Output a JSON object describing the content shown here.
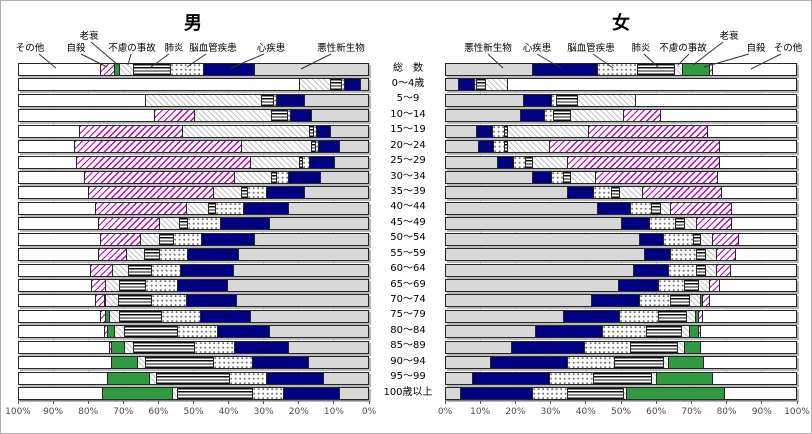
{
  "titles": {
    "male": "男",
    "female": "女"
  },
  "causes": [
    {
      "id": "cancer",
      "label": "悪性新生物",
      "swatch": "light-gray-solid"
    },
    {
      "id": "heart",
      "label": "心疾患",
      "swatch": "navy-solid"
    },
    {
      "id": "stroke",
      "label": "脳血管疾患",
      "swatch": "gray-dots"
    },
    {
      "id": "pneumonia",
      "label": "肺炎",
      "swatch": "black-horizontal-stripes"
    },
    {
      "id": "accident",
      "label": "不慮の事故",
      "swatch": "light-gray-diagonal-hatch"
    },
    {
      "id": "senility",
      "label": "老衰",
      "swatch": "green-solid"
    },
    {
      "id": "suicide",
      "label": "自殺",
      "swatch": "magenta-diagonal-hatch"
    },
    {
      "id": "other",
      "label": "その他",
      "swatch": "white"
    }
  ],
  "colors": {
    "heart": "#000082",
    "senility": "#2e9b3e",
    "suicide_hatch": "#bf00bf",
    "cancer": "#d8d8d8",
    "accident_hatch": "#c4c4c4",
    "grid": "#d9d9d9"
  },
  "axis": {
    "male_ticks": [
      "100%",
      "90%",
      "80%",
      "70%",
      "60%",
      "50%",
      "40%",
      "30%",
      "20%",
      "10%",
      "0%"
    ],
    "female_ticks": [
      "0%",
      "10%",
      "20%",
      "30%",
      "40%",
      "50%",
      "60%",
      "70%",
      "80%",
      "90%",
      "100%"
    ]
  },
  "chart_data": [
    {
      "type": "bar",
      "title": "男",
      "orientation": "horizontal-stacked-100pct",
      "bar_direction": "right-to-left",
      "x_range": [
        0,
        100
      ],
      "x_tick_labels": [
        "100%",
        "90%",
        "80%",
        "70%",
        "60%",
        "50%",
        "40%",
        "30%",
        "20%",
        "10%",
        "0%"
      ],
      "categories": [
        "総　数",
        "0〜4歳",
        "5〜9",
        "10〜14",
        "15〜19",
        "20〜24",
        "25〜29",
        "30〜34",
        "35〜39",
        "40〜44",
        "45〜49",
        "50〜54",
        "55〜59",
        "60〜64",
        "65〜69",
        "70〜74",
        "75〜79",
        "80〜84",
        "85〜89",
        "90〜94",
        "95〜99",
        "100歳以上"
      ],
      "series": [
        {
          "name": "悪性新生物",
          "values": [
            32.5,
            2,
            18,
            16,
            10.5,
            8,
            9.5,
            13.5,
            18,
            22.5,
            28,
            32.5,
            37,
            38.5,
            40,
            37.5,
            33.5,
            28,
            22.5,
            17,
            12.5,
            8
          ]
        },
        {
          "name": "心疾患",
          "values": [
            14.5,
            4.5,
            8,
            6,
            4,
            6,
            7,
            9,
            11,
            13,
            14,
            15,
            14.5,
            15,
            14.5,
            14.5,
            14.5,
            15,
            15.5,
            16,
            16.5,
            16
          ]
        },
        {
          "name": "脳血管疾患",
          "values": [
            9.5,
            1,
            1,
            1,
            1,
            1,
            2,
            3.5,
            5.5,
            8,
            9.5,
            8,
            8,
            8.5,
            9,
            10,
            11,
            11.5,
            11.5,
            11,
            10.5,
            9
          ]
        },
        {
          "name": "肺炎",
          "values": [
            10.5,
            3,
            3.5,
            4.5,
            1,
            1,
            1,
            1.5,
            1.5,
            2,
            2.5,
            4,
            4.5,
            6.5,
            7.5,
            9.5,
            12,
            15,
            17.5,
            19.5,
            21,
            21.5
          ]
        },
        {
          "name": "不慮の事故",
          "values": [
            4,
            9,
            33,
            22,
            36.5,
            20,
            14,
            10.5,
            8,
            6.5,
            5.5,
            5.5,
            5,
            4.5,
            4,
            3.5,
            3,
            3,
            2.5,
            2.5,
            2,
            1.5
          ]
        },
        {
          "name": "老衰",
          "values": [
            1.5,
            0,
            0,
            0,
            0,
            0,
            0,
            0,
            0,
            0,
            0,
            0,
            0,
            0,
            0,
            0.5,
            1,
            2,
            4,
            7.5,
            12,
            20
          ]
        },
        {
          "name": "自殺",
          "values": [
            4,
            0,
            0,
            11.5,
            29.5,
            48,
            50,
            43,
            36,
            26,
            17.5,
            11.5,
            8,
            6.5,
            4,
            2.5,
            1.5,
            1,
            0.5,
            0,
            0,
            0
          ]
        },
        {
          "name": "その他",
          "values": [
            23.5,
            80.5,
            36.5,
            39,
            17.5,
            16,
            16.5,
            19,
            20,
            22,
            23,
            23.5,
            23,
            20.5,
            21,
            22,
            23.5,
            24.5,
            26,
            26.5,
            25.5,
            24
          ]
        }
      ]
    },
    {
      "type": "bar",
      "title": "女",
      "orientation": "horizontal-stacked-100pct",
      "bar_direction": "left-to-right",
      "x_range": [
        0,
        100
      ],
      "x_tick_labels": [
        "0%",
        "10%",
        "20%",
        "30%",
        "40%",
        "50%",
        "60%",
        "70%",
        "80%",
        "90%",
        "100%"
      ],
      "categories": [
        "総　数",
        "0〜4歳",
        "5〜9",
        "10〜14",
        "15〜19",
        "20〜24",
        "25〜29",
        "30〜34",
        "35〜39",
        "40〜44",
        "45〜49",
        "50〜54",
        "55〜59",
        "60〜64",
        "65〜69",
        "70〜74",
        "75〜79",
        "80〜84",
        "85〜89",
        "90〜94",
        "95〜99",
        "100歳以上"
      ],
      "series": [
        {
          "name": "悪性新生物",
          "values": [
            24.5,
            3.5,
            22,
            21,
            8.5,
            9,
            14.5,
            24.5,
            34.5,
            43,
            50,
            55,
            56.5,
            53.5,
            49,
            41.5,
            33.5,
            25.5,
            18.5,
            12.5,
            7.5,
            4
          ]
        },
        {
          "name": "心疾患",
          "values": [
            18.5,
            4.5,
            8,
            7,
            4.5,
            4.5,
            4.5,
            5.5,
            7.5,
            9.5,
            8,
            7,
            7.5,
            10,
            11.5,
            13.5,
            16,
            19,
            21,
            22,
            22,
            20.5
          ]
        },
        {
          "name": "脳血管疾患",
          "values": [
            11.5,
            0.5,
            1.5,
            2.5,
            3.5,
            3,
            3.5,
            3.5,
            5,
            6,
            7.5,
            8.5,
            7.5,
            8,
            7.5,
            9,
            11,
            12.5,
            13,
            13.5,
            12.5,
            10
          ]
        },
        {
          "name": "肺炎",
          "values": [
            10.5,
            2.5,
            6,
            5,
            1,
            1,
            2,
            2,
            2.5,
            2.5,
            2.5,
            2,
            2.5,
            2.5,
            4,
            5.5,
            8,
            10,
            13.5,
            14,
            16.5,
            16
          ]
        },
        {
          "name": "不慮の事故",
          "values": [
            2.5,
            6.5,
            16.5,
            15,
            23,
            12,
            10,
            7,
            6.5,
            3,
            3.5,
            3.5,
            3,
            3,
            3,
            3,
            2.5,
            2.5,
            2,
            1.5,
            1.5,
            1
          ]
        },
        {
          "name": "老衰",
          "values": [
            7.5,
            0,
            0,
            0,
            0,
            0,
            0,
            0,
            0,
            0,
            0,
            0,
            0,
            0,
            0,
            0.5,
            1,
            2.5,
            4.5,
            10,
            16,
            28
          ]
        },
        {
          "name": "自殺",
          "values": [
            1,
            0,
            0,
            10.5,
            34,
            48.5,
            43.5,
            35,
            22.5,
            17.5,
            10,
            7.5,
            5.5,
            4,
            3,
            2,
            1,
            0.5,
            0,
            0,
            0,
            0
          ]
        },
        {
          "name": "その他",
          "values": [
            24,
            82.5,
            46,
            39,
            25.5,
            22,
            22,
            22.5,
            21.5,
            18.5,
            18.5,
            16.5,
            17.5,
            19,
            22,
            25,
            27,
            27.5,
            27.5,
            26.5,
            24,
            20.5
          ]
        }
      ]
    }
  ]
}
